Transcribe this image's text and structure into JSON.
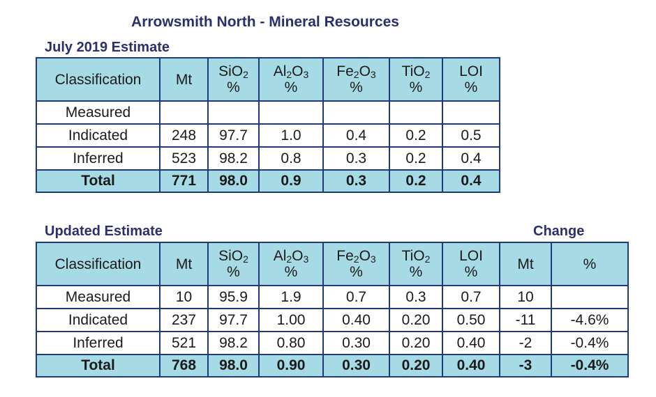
{
  "title": "Arrowsmith North - Mineral Resources",
  "top": {
    "label": "July 2019 Estimate",
    "headers": {
      "classification": "Classification",
      "mt": "Mt",
      "sio2_sym": "SiO",
      "sio2_sub": "2",
      "al2o3_a": "Al",
      "al2o3_sub1": "2",
      "al2o3_b": "O",
      "al2o3_sub2": "3",
      "fe2o3_a": "Fe",
      "fe2o3_sub1": "2",
      "fe2o3_b": "O",
      "fe2o3_sub2": "3",
      "tio2_sym": "TiO",
      "tio2_sub": "2",
      "loi": "LOI",
      "pct": "%"
    },
    "rows": [
      [
        "Measured",
        "",
        "",
        "",
        "",
        "",
        ""
      ],
      [
        "Indicated",
        "248",
        "97.7",
        "1.0",
        "0.4",
        "0.2",
        "0.5"
      ],
      [
        "Inferred",
        "523",
        "98.2",
        "0.8",
        "0.3",
        "0.2",
        "0.4"
      ]
    ],
    "total": [
      "Total",
      "771",
      "98.0",
      "0.9",
      "0.3",
      "0.2",
      "0.4"
    ]
  },
  "bottom": {
    "label": "Updated Estimate",
    "change_label": "Change",
    "headers": {
      "classification": "Classification",
      "mt": "Mt",
      "sio2_sym": "SiO",
      "sio2_sub": "2",
      "al2o3_a": "Al",
      "al2o3_sub1": "2",
      "al2o3_b": "O",
      "al2o3_sub2": "3",
      "fe2o3_a": "Fe",
      "fe2o3_sub1": "2",
      "fe2o3_b": "O",
      "fe2o3_sub2": "3",
      "tio2_sym": "TiO",
      "tio2_sub": "2",
      "loi": "LOI",
      "pct": "%",
      "change_mt": "Mt",
      "change_pct": "%"
    },
    "rows": [
      [
        "Measured",
        "10",
        "95.9",
        "1.9",
        "0.7",
        "0.3",
        "0.7",
        "10",
        ""
      ],
      [
        "Indicated",
        "237",
        "97.7",
        "1.00",
        "0.40",
        "0.20",
        "0.50",
        "-11",
        "-4.6%"
      ],
      [
        "Inferred",
        "521",
        "98.2",
        "0.80",
        "0.30",
        "0.20",
        "0.40",
        "-2",
        "-0.4%"
      ]
    ],
    "total": [
      "Total",
      "768",
      "98.0",
      "0.90",
      "0.30",
      "0.20",
      "0.40",
      "-3",
      "-0.4%"
    ]
  },
  "colors": {
    "header_bg": "#a6dbe6",
    "border": "#1f3a7a",
    "title": "#2b2f6b",
    "negative": "#e02020"
  }
}
